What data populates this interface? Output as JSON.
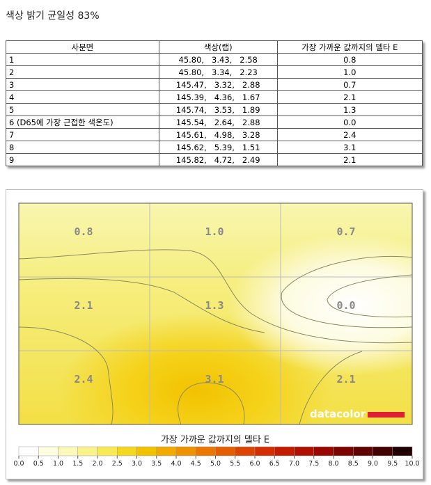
{
  "title": "색상 밝기 균일성 83%",
  "table": {
    "headers": [
      "사분면",
      "색상(랩)",
      "가장 가까운 값까지의 델타 E"
    ],
    "rows": [
      [
        "1",
        "45.80,   3.43,   2.58",
        "0.8"
      ],
      [
        "2",
        "45.80,   3.34,   2.23",
        "1.0"
      ],
      [
        "3",
        "145.47,   3.32,   2.88",
        "0.7"
      ],
      [
        "4",
        "145.39,   4.36,   1.67",
        "2.1"
      ],
      [
        "5",
        "145.74,   3.53,   1.89",
        "1.3"
      ],
      [
        "6 (D65에 가장 근접한 색온도)",
        "145.54,   2.64,   2.88",
        "0.0"
      ],
      [
        "7",
        "145.61,   4.98,   3.28",
        "2.4"
      ],
      [
        "8",
        "145.62,   5.39,   1.51",
        "3.1"
      ],
      [
        "9",
        "145.82,   4.72,   2.49",
        "2.1"
      ]
    ]
  },
  "heatmap": {
    "labels": [
      "0.8",
      "1.0",
      "0.7",
      "2.1",
      "1.3",
      "0.0",
      "2.4",
      "3.1",
      "2.1"
    ],
    "brand": "datacolor",
    "colorbar_title": "가장 가까운 값까지의 델타 E",
    "colorbar_ticks": [
      "0.0",
      "0.5",
      "1.0",
      "1.5",
      "2.0",
      "2.5",
      "3.0",
      "3.5",
      "4.0",
      "4.5",
      "5.0",
      "5.5",
      "6.0",
      "6.5",
      "7.0",
      "7.5",
      "8.0",
      "8.5",
      "9.0",
      "9.5",
      "10.0"
    ]
  }
}
